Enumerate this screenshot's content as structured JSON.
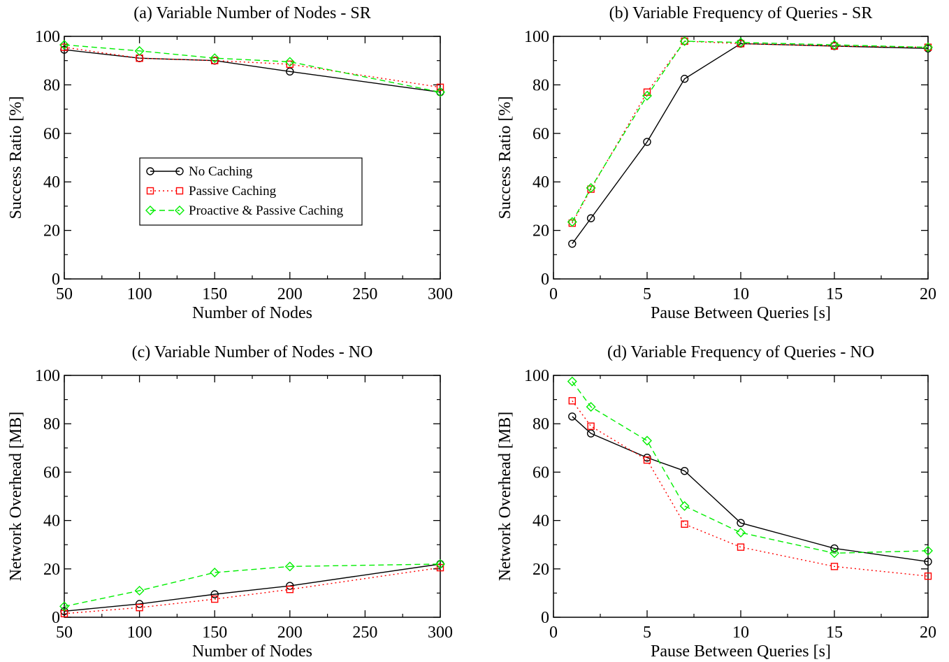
{
  "legend": {
    "entries": [
      "No Caching",
      "Passive Caching",
      "Proactive & Passive Caching"
    ]
  },
  "series_styles": [
    {
      "color": "#000000",
      "dash": "",
      "marker": "circle"
    },
    {
      "color": "#ff0000",
      "dash": "2,4",
      "marker": "square"
    },
    {
      "color": "#00ee00",
      "dash": "8,5",
      "marker": "diamond"
    }
  ],
  "chart_data": [
    {
      "type": "line",
      "title": "(a) Variable Number of Nodes - SR",
      "xlabel": "Number of Nodes",
      "ylabel": "Success Ratio [%]",
      "xlim": [
        50,
        300
      ],
      "ylim": [
        0,
        100
      ],
      "xticks": [
        50,
        100,
        150,
        200,
        250,
        300
      ],
      "yticks": [
        0,
        20,
        40,
        60,
        80,
        100
      ],
      "legend_position": "center-left",
      "series": [
        {
          "name": "No Caching",
          "x": [
            50,
            100,
            150,
            200,
            300
          ],
          "y": [
            94.5,
            91,
            90,
            85.5,
            77
          ]
        },
        {
          "name": "Passive Caching",
          "x": [
            50,
            100,
            150,
            200,
            300
          ],
          "y": [
            95.5,
            91,
            90,
            88.5,
            79
          ]
        },
        {
          "name": "Proactive & Passive Caching",
          "x": [
            50,
            100,
            150,
            200,
            300
          ],
          "y": [
            96.5,
            94,
            91,
            89.5,
            77
          ]
        }
      ]
    },
    {
      "type": "line",
      "title": "(b) Variable Frequency of Queries - SR",
      "xlabel": "Pause Between Queries [s]",
      "ylabel": "Success Ratio [%]",
      "xlim": [
        0,
        20
      ],
      "ylim": [
        0,
        100
      ],
      "xticks": [
        0,
        5,
        10,
        15,
        20
      ],
      "yticks": [
        0,
        20,
        40,
        60,
        80,
        100
      ],
      "series": [
        {
          "name": "No Caching",
          "x": [
            1,
            2,
            5,
            7,
            10,
            15,
            20
          ],
          "y": [
            14.5,
            25,
            56.5,
            82.5,
            97,
            96,
            95
          ]
        },
        {
          "name": "Passive Caching",
          "x": [
            1,
            2,
            5,
            7,
            10,
            15,
            20
          ],
          "y": [
            23,
            37,
            77,
            98,
            97,
            96,
            95.5
          ]
        },
        {
          "name": "Proactive & Passive Caching",
          "x": [
            1,
            2,
            5,
            7,
            10,
            15,
            20
          ],
          "y": [
            23.5,
            37.5,
            75.5,
            98,
            97.5,
            96.5,
            95.5
          ]
        }
      ]
    },
    {
      "type": "line",
      "title": "(c) Variable Number of Nodes - NO",
      "xlabel": "Number of Nodes",
      "ylabel": "Network Overhead [MB]",
      "xlim": [
        50,
        300
      ],
      "ylim": [
        0,
        100
      ],
      "xticks": [
        50,
        100,
        150,
        200,
        250,
        300
      ],
      "yticks": [
        0,
        20,
        40,
        60,
        80,
        100
      ],
      "series": [
        {
          "name": "No Caching",
          "x": [
            50,
            100,
            150,
            200,
            300
          ],
          "y": [
            2.5,
            5.5,
            9.5,
            13,
            22
          ]
        },
        {
          "name": "Passive Caching",
          "x": [
            50,
            100,
            150,
            200,
            300
          ],
          "y": [
            1.5,
            4,
            7.5,
            11.5,
            20.5
          ]
        },
        {
          "name": "Proactive & Passive Caching",
          "x": [
            50,
            100,
            150,
            200,
            300
          ],
          "y": [
            4.5,
            11,
            18.5,
            21,
            22
          ]
        }
      ]
    },
    {
      "type": "line",
      "title": "(d) Variable Frequency of Queries - NO",
      "xlabel": "Pause Between Queries [s]",
      "ylabel": "Network Overhead [MB]",
      "xlim": [
        0,
        20
      ],
      "ylim": [
        0,
        100
      ],
      "xticks": [
        0,
        5,
        10,
        15,
        20
      ],
      "yticks": [
        0,
        20,
        40,
        60,
        80,
        100
      ],
      "series": [
        {
          "name": "No Caching",
          "x": [
            1,
            2,
            5,
            7,
            10,
            15,
            20
          ],
          "y": [
            83,
            76,
            66,
            60.5,
            39,
            28.5,
            23
          ]
        },
        {
          "name": "Passive Caching",
          "x": [
            1,
            2,
            5,
            7,
            10,
            15,
            20
          ],
          "y": [
            89.5,
            79,
            65,
            38.5,
            29,
            21,
            17
          ]
        },
        {
          "name": "Proactive & Passive Caching",
          "x": [
            1,
            2,
            5,
            7,
            10,
            15,
            20
          ],
          "y": [
            97.5,
            87,
            73,
            46,
            35,
            26.5,
            27.5
          ]
        }
      ]
    }
  ]
}
